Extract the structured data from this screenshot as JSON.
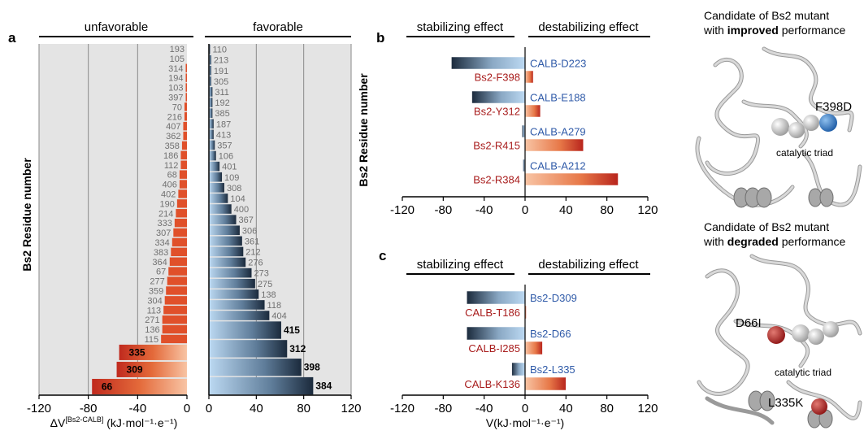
{
  "panel_a": {
    "letter": "a",
    "groups": {
      "left": "unfavorable",
      "right": "favorable"
    },
    "ylabel": "Bs2 Residue number",
    "xlabel_main": "ΔV",
    "xlabel_sup": "[Bs2-CALB]",
    "xlabel_unit": " (kJ·mol⁻¹·e⁻¹)"
  },
  "panel_b": {
    "letter": "b",
    "left_header": "stabilizing effect",
    "right_header": "destabilizing effect",
    "ylabel": "Bs2 Residue number"
  },
  "panel_c": {
    "letter": "c",
    "left_header": "stabilizing effect",
    "right_header": "destabilizing effect",
    "xlabel": "V(kJ·mol⁻¹·e⁻¹)"
  },
  "structures": {
    "top_title_1": "Candidate of Bs2 mutant",
    "top_title_2_pre": "with ",
    "top_title_2_bold": "improved",
    "top_title_2_post": " performance",
    "top_mutation": "F398D",
    "top_triad": "catalytic triad",
    "bottom_title_1": "Candidate of Bs2 mutant",
    "bottom_title_2_pre": "with ",
    "bottom_title_2_bold": "degraded",
    "bottom_title_2_post": " performance",
    "bottom_mutation_1": "D66I",
    "bottom_mutation_2": "L335K",
    "bottom_triad": "catalytic triad",
    "colors": {
      "improved": "#2f6fb8",
      "degraded": "#b52020",
      "protein": "#d9d9d9"
    }
  },
  "colors": {
    "unfavorable": "#e0502a",
    "unfavorable_light": "#f8c4a4",
    "favorable_light": "#bcd9f2",
    "favorable_dark": "#1b2a3c",
    "panel_bg": "#e4e4e4",
    "calb_label": "#2f5aa8",
    "bs2_label": "#a81c1c"
  },
  "chart_data": [
    {
      "type": "bar",
      "orientation": "horizontal",
      "title": "unfavorable",
      "xlabel": "ΔV[Bs2-CALB] (kJ·mol⁻¹·e⁻¹)",
      "ylabel": "Bs2 Residue number",
      "xlim": [
        -120,
        0
      ],
      "xticks": [
        -120,
        -80,
        -40,
        0
      ],
      "categories": [
        "193",
        "105",
        "314",
        "194",
        "103",
        "397",
        "70",
        "216",
        "407",
        "362",
        "358",
        "186",
        "112",
        "68",
        "406",
        "402",
        "190",
        "214",
        "333",
        "307",
        "334",
        "383",
        "364",
        "67",
        "277",
        "359",
        "304",
        "113",
        "271",
        "136",
        "115",
        "335",
        "309",
        "66"
      ],
      "values": [
        0,
        0,
        -1,
        -1,
        -1,
        -1,
        -2,
        -2,
        -3,
        -3,
        -4,
        -5,
        -5,
        -6,
        -6,
        -7,
        -8,
        -9,
        -10,
        -11,
        -12,
        -13,
        -14,
        -15,
        -16,
        -17,
        -18,
        -19,
        -20,
        -20,
        -21,
        -55,
        -57,
        -77
      ],
      "bold_labels": [
        "335",
        "309",
        "66"
      ],
      "grid": true
    },
    {
      "type": "bar",
      "orientation": "horizontal",
      "title": "favorable",
      "xlim": [
        0,
        120
      ],
      "xticks": [
        0,
        40,
        80,
        120
      ],
      "categories": [
        "110",
        "213",
        "191",
        "305",
        "311",
        "192",
        "385",
        "187",
        "413",
        "357",
        "106",
        "401",
        "109",
        "308",
        "104",
        "400",
        "367",
        "306",
        "361",
        "212",
        "276",
        "273",
        "275",
        "138",
        "118",
        "404",
        "415",
        "312",
        "398",
        "384"
      ],
      "values": [
        1,
        2,
        2,
        2,
        3,
        3,
        3,
        4,
        4,
        5,
        6,
        9,
        11,
        13,
        16,
        19,
        23,
        26,
        28,
        29,
        31,
        36,
        39,
        42,
        47,
        51,
        61,
        66,
        78,
        88
      ],
      "bold_labels": [
        "415",
        "312",
        "398",
        "384"
      ],
      "grid": true
    },
    {
      "type": "bar",
      "orientation": "horizontal",
      "xlim": [
        -120,
        120
      ],
      "xticks": [
        -120,
        -80,
        -40,
        0,
        40,
        80,
        120
      ],
      "series": [
        {
          "group": 1,
          "label": "CALB-D223",
          "value": -72,
          "color": "calb"
        },
        {
          "group": 1,
          "label": "Bs2-F398",
          "value": 8,
          "color": "bs2"
        },
        {
          "group": 2,
          "label": "CALB-E188",
          "value": -52,
          "color": "calb"
        },
        {
          "group": 2,
          "label": "Bs2-Y312",
          "value": 15,
          "color": "bs2"
        },
        {
          "group": 3,
          "label": "CALB-A279",
          "value": -3,
          "color": "calb"
        },
        {
          "group": 3,
          "label": "Bs2-R415",
          "value": 57,
          "color": "bs2"
        },
        {
          "group": 4,
          "label": "CALB-A212",
          "value": -2,
          "color": "calb"
        },
        {
          "group": 4,
          "label": "Bs2-R384",
          "value": 91,
          "color": "bs2"
        }
      ]
    },
    {
      "type": "bar",
      "orientation": "horizontal",
      "xlabel": "V(kJ·mol⁻¹·e⁻¹)",
      "xlim": [
        -120,
        120
      ],
      "xticks": [
        -120,
        -80,
        -40,
        0,
        40,
        80,
        120
      ],
      "series": [
        {
          "group": 1,
          "label": "Bs2-D309",
          "value": -57,
          "color": "bs2pair"
        },
        {
          "group": 1,
          "label": "CALB-T186",
          "value": 1,
          "color": "calbpair"
        },
        {
          "group": 2,
          "label": "Bs2-D66",
          "value": -57,
          "color": "bs2pair"
        },
        {
          "group": 2,
          "label": "CALB-I285",
          "value": 17,
          "color": "calbpair"
        },
        {
          "group": 3,
          "label": "Bs2-L335",
          "value": -13,
          "color": "bs2pair"
        },
        {
          "group": 3,
          "label": "CALB-K136",
          "value": 40,
          "color": "calbpair"
        }
      ]
    }
  ]
}
